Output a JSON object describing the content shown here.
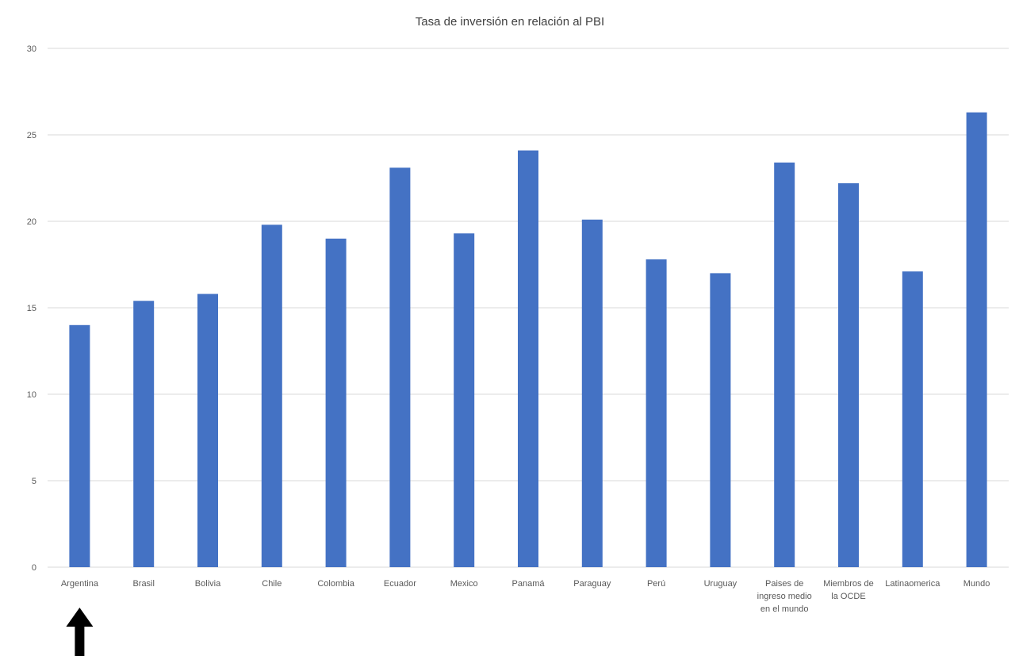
{
  "chart_data": {
    "type": "bar",
    "title": "Tasa de inversión en relación al PBI",
    "xlabel": "",
    "ylabel": "",
    "ylim": [
      0,
      30
    ],
    "yticks": [
      0,
      5,
      10,
      15,
      20,
      25,
      30
    ],
    "grid": true,
    "legend": "none",
    "bar_color": "#4472C4",
    "categories": [
      [
        "Argentina"
      ],
      [
        "Brasil"
      ],
      [
        "Bolivia"
      ],
      [
        "Chile"
      ],
      [
        "Colombia"
      ],
      [
        "Ecuador"
      ],
      [
        "Mexico"
      ],
      [
        "Panamá"
      ],
      [
        "Paraguay"
      ],
      [
        "Perú"
      ],
      [
        "Uruguay"
      ],
      [
        "Paises de",
        "ingreso medio",
        "en el mundo"
      ],
      [
        "Miembros de",
        "la OCDE"
      ],
      [
        "Latinaomerica"
      ],
      [
        "Mundo"
      ]
    ],
    "values": [
      14.0,
      15.4,
      15.8,
      19.8,
      19.0,
      23.1,
      19.3,
      24.1,
      20.1,
      17.8,
      17.0,
      23.4,
      22.2,
      17.1,
      26.3
    ]
  },
  "annotation": {
    "icon": "arrow-up-icon",
    "target_category_index": 0,
    "color": "#000000"
  }
}
